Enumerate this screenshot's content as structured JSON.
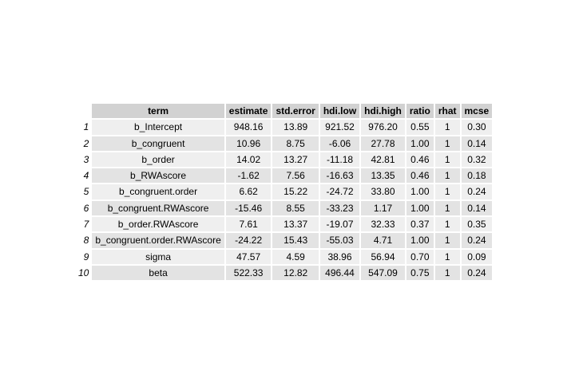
{
  "chart_data": {
    "type": "table",
    "columns": [
      "term",
      "estimate",
      "std.error",
      "hdi.low",
      "hdi.high",
      "ratio",
      "rhat",
      "mcse"
    ],
    "row_names": [
      "1",
      "2",
      "3",
      "4",
      "5",
      "6",
      "7",
      "8",
      "9",
      "10"
    ],
    "rows": [
      [
        "b_Intercept",
        "948.16",
        "13.89",
        "921.52",
        "976.20",
        "0.55",
        "1",
        "0.30"
      ],
      [
        "b_congruent",
        "10.96",
        "8.75",
        "-6.06",
        "27.78",
        "1.00",
        "1",
        "0.14"
      ],
      [
        "b_order",
        "14.02",
        "13.27",
        "-11.18",
        "42.81",
        "0.46",
        "1",
        "0.32"
      ],
      [
        "b_RWAscore",
        "-1.62",
        "7.56",
        "-16.63",
        "13.35",
        "0.46",
        "1",
        "0.18"
      ],
      [
        "b_congruent.order",
        "6.62",
        "15.22",
        "-24.72",
        "33.80",
        "1.00",
        "1",
        "0.24"
      ],
      [
        "b_congruent.RWAscore",
        "-15.46",
        "8.55",
        "-33.23",
        "1.17",
        "1.00",
        "1",
        "0.14"
      ],
      [
        "b_order.RWAscore",
        "7.61",
        "13.37",
        "-19.07",
        "32.33",
        "0.37",
        "1",
        "0.35"
      ],
      [
        "b_congruent.order.RWAscore",
        "-24.22",
        "15.43",
        "-55.03",
        "4.71",
        "1.00",
        "1",
        "0.24"
      ],
      [
        "sigma",
        "47.57",
        "4.59",
        "38.96",
        "56.94",
        "0.70",
        "1",
        "0.09"
      ],
      [
        "beta",
        "522.33",
        "12.82",
        "496.44",
        "547.09",
        "0.75",
        "1",
        "0.24"
      ]
    ]
  },
  "colors": {
    "header_bg": "#d2d2d2",
    "row_odd_bg": "#efefef",
    "row_even_bg": "#e3e3e3"
  }
}
